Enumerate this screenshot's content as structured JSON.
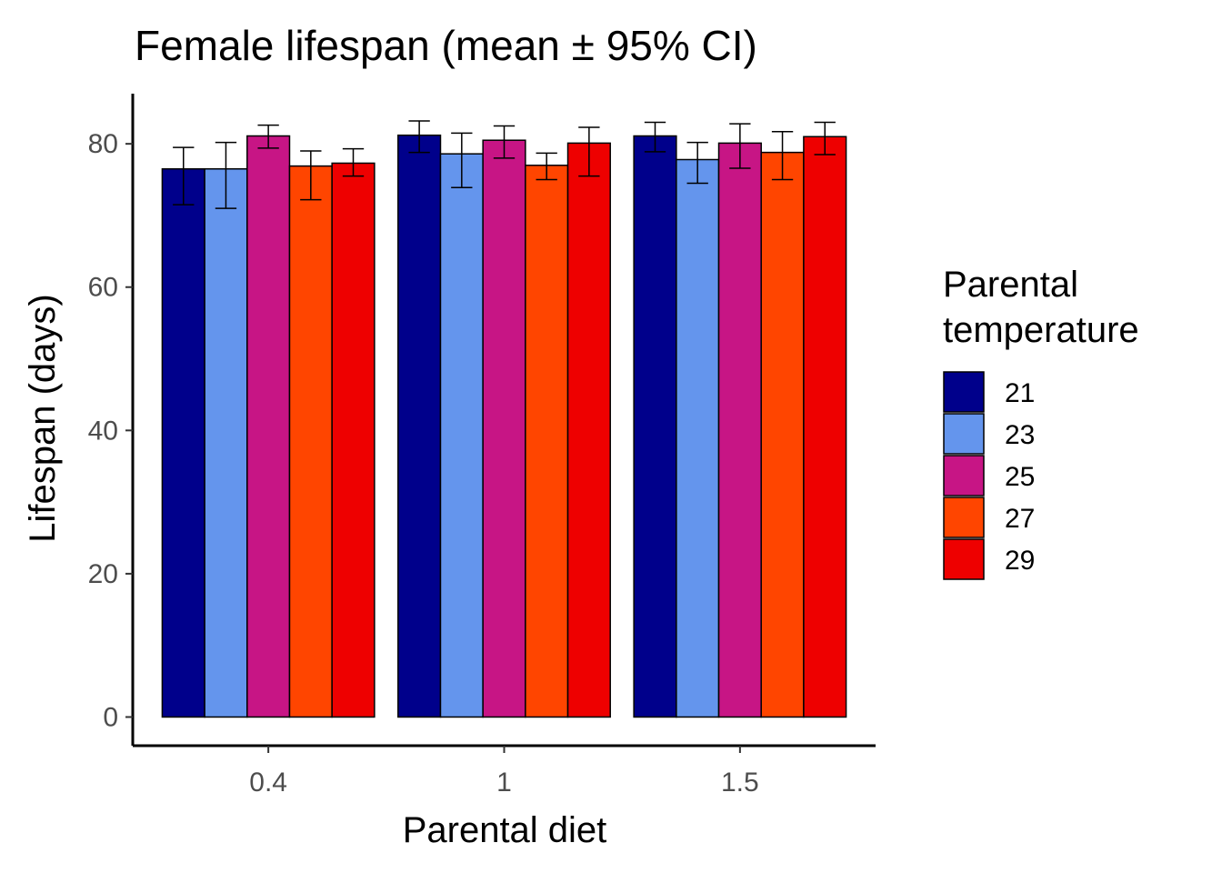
{
  "chart_data": {
    "type": "bar",
    "title": "Female lifespan (mean ± 95% CI)",
    "xlabel": "Parental diet",
    "ylabel": "Lifespan (days)",
    "categories": [
      "0.4",
      "1",
      "1.5"
    ],
    "ylim": [
      -4,
      87
    ],
    "yticks": [
      0,
      20,
      40,
      60,
      80
    ],
    "grid": false,
    "legend": {
      "title_lines": [
        "Parental",
        "temperature"
      ],
      "placement": "right"
    },
    "series": [
      {
        "name": "21",
        "color": "#00008B",
        "values": [
          76.5,
          81.2,
          81.1
        ],
        "ci_low": [
          71.5,
          78.8,
          78.9
        ],
        "ci_high": [
          79.5,
          83.2,
          83.0
        ]
      },
      {
        "name": "23",
        "color": "#6495ED",
        "values": [
          76.5,
          78.6,
          77.8
        ],
        "ci_low": [
          71.0,
          73.9,
          74.5
        ],
        "ci_high": [
          80.2,
          81.5,
          80.2
        ]
      },
      {
        "name": "25",
        "color": "#C71585",
        "values": [
          81.1,
          80.5,
          80.1
        ],
        "ci_low": [
          79.4,
          78.0,
          76.6
        ],
        "ci_high": [
          82.6,
          82.5,
          82.8
        ]
      },
      {
        "name": "27",
        "color": "#FF4500",
        "values": [
          76.9,
          77.0,
          78.8
        ],
        "ci_low": [
          72.2,
          75.0,
          75.0
        ],
        "ci_high": [
          79.0,
          78.7,
          81.7
        ]
      },
      {
        "name": "29",
        "color": "#EE0000",
        "values": [
          77.3,
          80.1,
          81.0
        ],
        "ci_low": [
          75.5,
          75.5,
          78.5
        ],
        "ci_high": [
          79.3,
          82.3,
          83.0
        ]
      }
    ]
  }
}
